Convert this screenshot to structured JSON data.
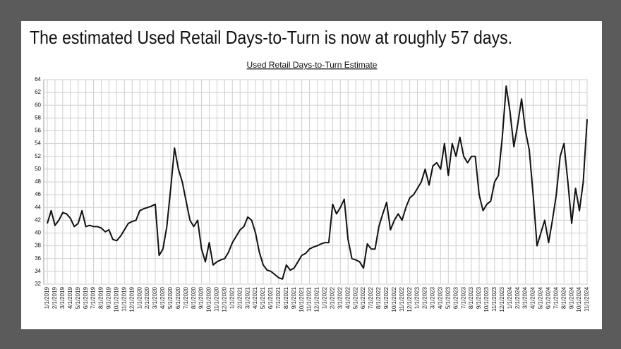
{
  "headline": "The estimated Used Retail Days-to-Turn is now at roughly 57 days.",
  "chart_data": {
    "type": "line",
    "title": "Used Retail Days-to-Turn Estimate",
    "color": "#111111",
    "grid": true,
    "ylim": [
      32,
      64
    ],
    "yticks": [
      32,
      34,
      36,
      38,
      40,
      42,
      44,
      46,
      48,
      50,
      52,
      54,
      56,
      58,
      60,
      62,
      64
    ],
    "categories": [
      "1/1/2019",
      null,
      "2/1/2019",
      null,
      "3/1/2019",
      null,
      "4/1/2019",
      null,
      "5/1/2019",
      null,
      "6/1/2019",
      null,
      "7/1/2019",
      null,
      "8/1/2019",
      null,
      "9/1/2019",
      null,
      "10/1/2019",
      null,
      "11/1/2019",
      null,
      "12/1/2019",
      null,
      "1/1/2020",
      null,
      "2/1/2020",
      null,
      "3/1/2020",
      null,
      "4/1/2020",
      null,
      "5/1/2020",
      null,
      "6/1/2020",
      null,
      "7/1/2020",
      null,
      "8/1/2020",
      null,
      "9/1/2020",
      null,
      "10/1/2020",
      null,
      "11/1/2020",
      null,
      "12/1/2020",
      null,
      "1/1/2021",
      null,
      "2/1/2021",
      null,
      "3/1/2021",
      null,
      "4/1/2021",
      null,
      "5/1/2021",
      null,
      "6/1/2021",
      null,
      "7/1/2021",
      null,
      "8/1/2021",
      null,
      "9/1/2021",
      null,
      "10/1/2021",
      null,
      "11/1/2021",
      null,
      "12/1/2021",
      null,
      "1/1/2022",
      null,
      "2/1/2022",
      null,
      "3/1/2022",
      null,
      "4/1/2022",
      null,
      "5/1/2022",
      null,
      "6/1/2022",
      null,
      "7/1/2022",
      null,
      "8/1/2022",
      null,
      "9/1/2022",
      null,
      "10/1/2022",
      null,
      "11/1/2022",
      null,
      "12/1/2022",
      null,
      "1/1/2023",
      null,
      "2/1/2023",
      null,
      "3/1/2023",
      null,
      "4/1/2023",
      null,
      "5/1/2023",
      null,
      "6/1/2023",
      null,
      "7/1/2023",
      null,
      "8/1/2023",
      null,
      "9/1/2023",
      null,
      "10/1/2023",
      null,
      "11/1/2023",
      null,
      "12/1/2023",
      null,
      "1/1/2024",
      null,
      "2/1/2024",
      null,
      "3/1/2024",
      null,
      "4/1/2024",
      null,
      "5/1/2024",
      null,
      "6/1/2024",
      null,
      "7/1/2024",
      null,
      "8/1/2024",
      null,
      "9/1/2024",
      null,
      "10/1/2024",
      null,
      "11/1/2024"
    ],
    "values": [
      41.5,
      43.5,
      41.2,
      42,
      43.2,
      43,
      42.3,
      41,
      41.5,
      43.5,
      41,
      41.2,
      41,
      41,
      40.8,
      40.2,
      40.5,
      39,
      38.8,
      39.5,
      40.5,
      41.5,
      41.8,
      42,
      43.5,
      43.8,
      44,
      44.2,
      44.5,
      36.5,
      37.5,
      41,
      47,
      53.3,
      50,
      48,
      45,
      42,
      41,
      42,
      37.5,
      35.5,
      38.5,
      35,
      35.5,
      35.8,
      36,
      37,
      38.5,
      39.5,
      40.5,
      41,
      42.5,
      42,
      40,
      37,
      35,
      34.2,
      34,
      33.5,
      33,
      32.8,
      35,
      34.2,
      34.5,
      35.5,
      36.5,
      36.8,
      37.5,
      37.8,
      38,
      38.3,
      38.5,
      38.5,
      44.5,
      43,
      44,
      45.3,
      39,
      36,
      35.8,
      35.5,
      34.5,
      38.3,
      37.5,
      37.5,
      41,
      43,
      44.8,
      40.5,
      42,
      43,
      42,
      44,
      45.5,
      46,
      47,
      48,
      50,
      47.5,
      50.5,
      51,
      50,
      54,
      49,
      54,
      52,
      55,
      52,
      51,
      52,
      52,
      46,
      43.5,
      44.5,
      45,
      48,
      49,
      55,
      63,
      59,
      53.5,
      57,
      61,
      56,
      53,
      46,
      38,
      40,
      42,
      38.5,
      42,
      46,
      52,
      54,
      48,
      41.5,
      47,
      43.5,
      48,
      57.8
    ]
  }
}
